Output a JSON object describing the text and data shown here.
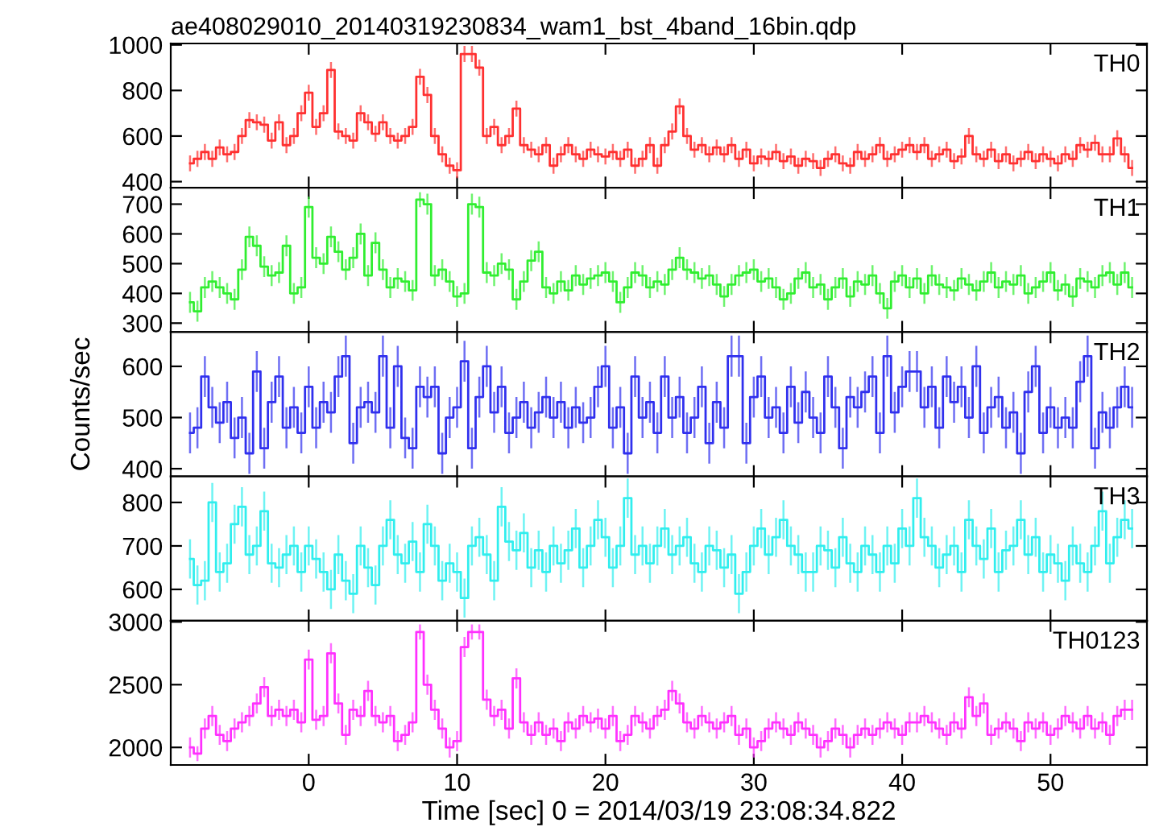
{
  "chart_data": [
    {
      "type": "step",
      "title": "ae408029010_20140319230834_wam1_bst_4band_16bin.qdp",
      "xlim": [
        -9.3,
        56.5
      ],
      "xticks": [
        0,
        10,
        20,
        30,
        40,
        50
      ],
      "ylim": [
        373,
        1006
      ],
      "yticks": [
        400,
        600,
        800,
        1000
      ],
      "tick_labels": "y",
      "grid": false,
      "legend": false,
      "x": [
        -8.0,
        -7.5,
        -7.0,
        -6.5,
        -6.0,
        -5.5,
        -5.0,
        -4.5,
        -4.0,
        -3.5,
        -3.0,
        -2.5,
        -2.0,
        -1.5,
        -1.0,
        -0.5,
        0.0,
        0.5,
        1.0,
        1.5,
        2.0,
        2.5,
        3.0,
        3.5,
        4.0,
        4.5,
        5.0,
        5.5,
        6.0,
        6.5,
        7.0,
        7.5,
        8.0,
        8.5,
        9.0,
        9.5,
        10.0,
        10.5,
        11.0,
        11.5,
        12.0,
        12.5,
        13.0,
        13.5,
        14.0,
        14.5,
        15.0,
        15.5,
        16.0,
        16.5,
        17.0,
        17.5,
        18.0,
        18.5,
        19.0,
        19.5,
        20.0,
        20.5,
        21.0,
        21.5,
        22.0,
        22.5,
        23.0,
        23.5,
        24.0,
        24.5,
        25.0,
        25.5,
        26.0,
        26.5,
        27.0,
        27.5,
        28.0,
        28.5,
        29.0,
        29.5,
        30.0,
        30.5,
        31.0,
        31.5,
        32.0,
        32.5,
        33.0,
        33.5,
        34.0,
        34.5,
        35.0,
        35.5,
        36.0,
        36.5,
        37.0,
        37.5,
        38.0,
        38.5,
        39.0,
        39.5,
        40.0,
        40.5,
        41.0,
        41.5,
        42.0,
        42.5,
        43.0,
        43.5,
        44.0,
        44.5,
        45.0,
        45.5,
        46.0,
        46.5,
        47.0,
        47.5,
        48.0,
        48.5,
        49.0,
        49.5,
        50.0,
        50.5,
        51.0,
        51.5,
        52.0,
        52.5,
        53.0,
        53.5,
        54.0,
        54.5,
        55.0,
        55.5
      ],
      "series": [
        {
          "name": "TH0",
          "color": "#ff3030",
          "values": [
            480,
            500,
            530,
            500,
            550,
            520,
            530,
            600,
            670,
            660,
            650,
            580,
            660,
            560,
            600,
            700,
            790,
            640,
            700,
            890,
            620,
            600,
            580,
            700,
            660,
            610,
            660,
            600,
            580,
            600,
            640,
            860,
            780,
            600,
            520,
            470,
            450,
            960,
            960,
            900,
            600,
            640,
            560,
            600,
            720,
            560,
            540,
            520,
            560,
            470,
            520,
            560,
            520,
            500,
            540,
            520,
            510,
            530,
            500,
            540,
            470,
            500,
            560,
            470,
            560,
            620,
            730,
            600,
            540,
            560,
            520,
            550,
            520,
            560,
            500,
            540,
            480,
            510,
            500,
            530,
            490,
            510,
            470,
            500,
            490,
            460,
            500,
            520,
            480,
            470,
            530,
            500,
            520,
            560,
            500,
            520,
            540,
            560,
            530,
            560,
            500,
            520,
            540,
            490,
            510,
            600,
            520,
            500,
            540,
            490,
            520,
            480,
            500,
            530,
            490,
            520,
            500,
            480,
            520,
            500,
            560,
            540,
            570,
            520,
            520,
            590,
            520,
            460
          ],
          "errors": [
            35,
            35,
            35,
            35,
            35,
            35,
            35,
            35,
            35,
            35,
            35,
            35,
            35,
            35,
            35,
            35,
            35,
            35,
            35,
            35,
            35,
            35,
            35,
            35,
            35,
            35,
            35,
            35,
            35,
            35,
            35,
            35,
            35,
            35,
            35,
            35,
            35,
            35,
            35,
            35,
            35,
            35,
            35,
            35,
            35,
            35,
            35,
            35,
            35,
            35,
            35,
            35,
            35,
            35,
            35,
            35,
            35,
            35,
            35,
            35,
            35,
            35,
            35,
            35,
            35,
            35,
            35,
            35,
            35,
            35,
            35,
            35,
            35,
            35,
            35,
            35,
            35,
            35,
            35,
            35,
            35,
            35,
            35,
            35,
            35,
            35,
            35,
            35,
            35,
            35,
            35,
            35,
            35,
            35,
            35,
            35,
            35,
            35,
            35,
            35,
            35,
            35,
            35,
            35,
            35,
            35,
            35,
            35,
            35,
            35,
            35,
            35,
            35,
            35,
            35,
            35,
            35,
            35,
            35,
            35,
            35,
            35,
            35,
            35,
            35,
            35,
            35,
            35
          ]
        }
      ]
    },
    {
      "type": "step",
      "xlim": [
        -9.3,
        56.5
      ],
      "xticks": [
        0,
        10,
        20,
        30,
        40,
        50
      ],
      "ylim": [
        270,
        755
      ],
      "yticks": [
        300,
        400,
        500,
        600,
        700
      ],
      "tick_labels": "y",
      "grid": false,
      "legend": false,
      "x": [
        -8.0,
        -7.5,
        -7.0,
        -6.5,
        -6.0,
        -5.5,
        -5.0,
        -4.5,
        -4.0,
        -3.5,
        -3.0,
        -2.5,
        -2.0,
        -1.5,
        -1.0,
        -0.5,
        0.0,
        0.5,
        1.0,
        1.5,
        2.0,
        2.5,
        3.0,
        3.5,
        4.0,
        4.5,
        5.0,
        5.5,
        6.0,
        6.5,
        7.0,
        7.5,
        8.0,
        8.5,
        9.0,
        9.5,
        10.0,
        10.5,
        11.0,
        11.5,
        12.0,
        12.5,
        13.0,
        13.5,
        14.0,
        14.5,
        15.0,
        15.5,
        16.0,
        16.5,
        17.0,
        17.5,
        18.0,
        18.5,
        19.0,
        19.5,
        20.0,
        20.5,
        21.0,
        21.5,
        22.0,
        22.5,
        23.0,
        23.5,
        24.0,
        24.5,
        25.0,
        25.5,
        26.0,
        26.5,
        27.0,
        27.5,
        28.0,
        28.5,
        29.0,
        29.5,
        30.0,
        30.5,
        31.0,
        31.5,
        32.0,
        32.5,
        33.0,
        33.5,
        34.0,
        34.5,
        35.0,
        35.5,
        36.0,
        36.5,
        37.0,
        37.5,
        38.0,
        38.5,
        39.0,
        39.5,
        40.0,
        40.5,
        41.0,
        41.5,
        42.0,
        42.5,
        43.0,
        43.5,
        44.0,
        44.5,
        45.0,
        45.5,
        46.0,
        46.5,
        47.0,
        47.5,
        48.0,
        48.5,
        49.0,
        49.5,
        50.0,
        50.5,
        51.0,
        51.5,
        52.0,
        52.5,
        53.0,
        53.5,
        54.0,
        54.5,
        55.0,
        55.5
      ],
      "series": [
        {
          "name": "TH1",
          "color": "#30ee30",
          "values": [
            370,
            340,
            420,
            440,
            420,
            400,
            380,
            480,
            590,
            560,
            490,
            460,
            470,
            560,
            400,
            420,
            690,
            520,
            500,
            590,
            540,
            480,
            520,
            600,
            460,
            570,
            480,
            420,
            450,
            440,
            410,
            715,
            700,
            460,
            480,
            440,
            390,
            400,
            700,
            690,
            470,
            460,
            500,
            480,
            380,
            440,
            510,
            540,
            420,
            400,
            440,
            410,
            460,
            430,
            450,
            460,
            470,
            440,
            370,
            420,
            470,
            460,
            420,
            440,
            430,
            480,
            520,
            480,
            470,
            450,
            460,
            430,
            390,
            430,
            460,
            470,
            480,
            440,
            450,
            420,
            380,
            400,
            450,
            470,
            420,
            430,
            380,
            420,
            450,
            390,
            440,
            430,
            460,
            400,
            350,
            440,
            460,
            420,
            450,
            400,
            460,
            430,
            420,
            410,
            450,
            430,
            410,
            440,
            470,
            420,
            440,
            430,
            460,
            400,
            420,
            440,
            470,
            410,
            430,
            390,
            450,
            440,
            420,
            460,
            470,
            430,
            470,
            420
          ],
          "errors": [
            35,
            35,
            35,
            35,
            35,
            35,
            35,
            35,
            35,
            35,
            35,
            35,
            35,
            35,
            35,
            35,
            35,
            35,
            35,
            35,
            35,
            35,
            35,
            35,
            35,
            35,
            35,
            35,
            35,
            35,
            35,
            25,
            35,
            35,
            35,
            35,
            35,
            35,
            35,
            35,
            35,
            35,
            35,
            35,
            35,
            35,
            35,
            35,
            35,
            35,
            35,
            35,
            35,
            35,
            35,
            35,
            35,
            35,
            35,
            35,
            35,
            35,
            35,
            35,
            35,
            35,
            35,
            35,
            35,
            35,
            35,
            35,
            35,
            35,
            35,
            35,
            35,
            35,
            35,
            35,
            35,
            35,
            35,
            35,
            35,
            35,
            35,
            35,
            35,
            35,
            35,
            35,
            35,
            35,
            35,
            35,
            35,
            35,
            35,
            35,
            35,
            35,
            35,
            35,
            35,
            35,
            35,
            35,
            35,
            35,
            35,
            35,
            35,
            35,
            35,
            35,
            35,
            35,
            35,
            35,
            35,
            35,
            35,
            35,
            35,
            35,
            35,
            35
          ]
        }
      ]
    },
    {
      "type": "step",
      "ylabel": "Counts/sec",
      "xlim": [
        -9.3,
        56.5
      ],
      "xticks": [
        0,
        10,
        20,
        30,
        40,
        50
      ],
      "ylim": [
        385,
        667
      ],
      "yticks": [
        400,
        500,
        600
      ],
      "tick_labels": "y",
      "grid": false,
      "legend": false,
      "x": [
        -8.0,
        -7.5,
        -7.0,
        -6.5,
        -6.0,
        -5.5,
        -5.0,
        -4.5,
        -4.0,
        -3.5,
        -3.0,
        -2.5,
        -2.0,
        -1.5,
        -1.0,
        -0.5,
        0.0,
        0.5,
        1.0,
        1.5,
        2.0,
        2.5,
        3.0,
        3.5,
        4.0,
        4.5,
        5.0,
        5.5,
        6.0,
        6.5,
        7.0,
        7.5,
        8.0,
        8.5,
        9.0,
        9.5,
        10.0,
        10.5,
        11.0,
        11.5,
        12.0,
        12.5,
        13.0,
        13.5,
        14.0,
        14.5,
        15.0,
        15.5,
        16.0,
        16.5,
        17.0,
        17.5,
        18.0,
        18.5,
        19.0,
        19.5,
        20.0,
        20.5,
        21.0,
        21.5,
        22.0,
        22.5,
        23.0,
        23.5,
        24.0,
        24.5,
        25.0,
        25.5,
        26.0,
        26.5,
        27.0,
        27.5,
        28.0,
        28.5,
        29.0,
        29.5,
        30.0,
        30.5,
        31.0,
        31.5,
        32.0,
        32.5,
        33.0,
        33.5,
        34.0,
        34.5,
        35.0,
        35.5,
        36.0,
        36.5,
        37.0,
        37.5,
        38.0,
        38.5,
        39.0,
        39.5,
        40.0,
        40.5,
        41.0,
        41.5,
        42.0,
        42.5,
        43.0,
        43.5,
        44.0,
        44.5,
        45.0,
        45.5,
        46.0,
        46.5,
        47.0,
        47.5,
        48.0,
        48.5,
        49.0,
        49.5,
        50.0,
        50.5,
        51.0,
        51.5,
        52.0,
        52.5,
        53.0,
        53.5,
        54.0,
        54.5,
        55.0,
        55.5
      ],
      "series": [
        {
          "name": "TH2",
          "color": "#3030ee",
          "values": [
            470,
            480,
            580,
            520,
            490,
            530,
            460,
            500,
            430,
            590,
            440,
            530,
            580,
            480,
            520,
            470,
            560,
            480,
            530,
            510,
            580,
            620,
            450,
            520,
            530,
            510,
            620,
            480,
            600,
            460,
            440,
            560,
            540,
            560,
            430,
            500,
            520,
            610,
            440,
            540,
            600,
            510,
            560,
            470,
            500,
            530,
            480,
            510,
            540,
            500,
            530,
            480,
            520,
            490,
            500,
            560,
            600,
            480,
            520,
            430,
            580,
            500,
            530,
            470,
            580,
            500,
            540,
            470,
            500,
            560,
            450,
            530,
            480,
            620,
            620,
            450,
            540,
            580,
            500,
            520,
            470,
            560,
            490,
            550,
            500,
            470,
            580,
            520,
            440,
            540,
            520,
            550,
            580,
            470,
            620,
            510,
            560,
            590,
            590,
            520,
            560,
            480,
            580,
            530,
            560,
            500,
            600,
            470,
            520,
            540,
            480,
            510,
            430,
            550,
            600,
            470,
            520,
            480,
            500,
            480,
            570,
            620,
            440,
            510,
            480,
            520,
            560,
            520
          ],
          "errors": [
            40,
            40,
            40,
            40,
            40,
            40,
            40,
            40,
            40,
            40,
            40,
            40,
            40,
            40,
            40,
            40,
            40,
            40,
            40,
            40,
            40,
            40,
            40,
            40,
            40,
            40,
            40,
            40,
            40,
            40,
            40,
            40,
            40,
            40,
            40,
            40,
            40,
            40,
            40,
            40,
            40,
            40,
            40,
            40,
            40,
            40,
            40,
            40,
            40,
            40,
            40,
            40,
            40,
            40,
            40,
            40,
            40,
            40,
            40,
            40,
            40,
            40,
            40,
            40,
            40,
            40,
            40,
            40,
            40,
            40,
            40,
            40,
            40,
            40,
            40,
            40,
            40,
            40,
            40,
            40,
            40,
            40,
            40,
            40,
            40,
            40,
            40,
            40,
            40,
            40,
            40,
            40,
            40,
            40,
            40,
            40,
            40,
            40,
            40,
            40,
            40,
            40,
            40,
            40,
            40,
            40,
            40,
            40,
            40,
            40,
            40,
            40,
            40,
            40,
            40,
            40,
            40,
            40,
            40,
            40,
            40,
            40,
            40,
            40,
            40,
            40,
            40,
            40
          ]
        }
      ]
    },
    {
      "type": "step",
      "xlim": [
        -9.3,
        56.5
      ],
      "xticks": [
        0,
        10,
        20,
        30,
        40,
        50
      ],
      "ylim": [
        528,
        860
      ],
      "yticks": [
        600,
        700,
        800
      ],
      "tick_labels": "y",
      "grid": false,
      "legend": false,
      "x": [
        -8.0,
        -7.5,
        -7.0,
        -6.5,
        -6.0,
        -5.5,
        -5.0,
        -4.5,
        -4.0,
        -3.5,
        -3.0,
        -2.5,
        -2.0,
        -1.5,
        -1.0,
        -0.5,
        0.0,
        0.5,
        1.0,
        1.5,
        2.0,
        2.5,
        3.0,
        3.5,
        4.0,
        4.5,
        5.0,
        5.5,
        6.0,
        6.5,
        7.0,
        7.5,
        8.0,
        8.5,
        9.0,
        9.5,
        10.0,
        10.5,
        11.0,
        11.5,
        12.0,
        12.5,
        13.0,
        13.5,
        14.0,
        14.5,
        15.0,
        15.5,
        16.0,
        16.5,
        17.0,
        17.5,
        18.0,
        18.5,
        19.0,
        19.5,
        20.0,
        20.5,
        21.0,
        21.5,
        22.0,
        22.5,
        23.0,
        23.5,
        24.0,
        24.5,
        25.0,
        25.5,
        26.0,
        26.5,
        27.0,
        27.5,
        28.0,
        28.5,
        29.0,
        29.5,
        30.0,
        30.5,
        31.0,
        31.5,
        32.0,
        32.5,
        33.0,
        33.5,
        34.0,
        34.5,
        35.0,
        35.5,
        36.0,
        36.5,
        37.0,
        37.5,
        38.0,
        38.5,
        39.0,
        39.5,
        40.0,
        40.5,
        41.0,
        41.5,
        42.0,
        42.5,
        43.0,
        43.5,
        44.0,
        44.5,
        45.0,
        45.5,
        46.0,
        46.5,
        47.0,
        47.5,
        48.0,
        48.5,
        49.0,
        49.5,
        50.0,
        50.5,
        51.0,
        51.5,
        52.0,
        52.5,
        53.0,
        53.5,
        54.0,
        54.5,
        55.0,
        55.5
      ],
      "series": [
        {
          "name": "TH3",
          "color": "#30eeee",
          "values": [
            670,
            610,
            620,
            800,
            640,
            660,
            750,
            790,
            680,
            700,
            780,
            660,
            650,
            680,
            700,
            640,
            700,
            670,
            640,
            600,
            680,
            620,
            590,
            700,
            650,
            610,
            700,
            760,
            680,
            660,
            710,
            640,
            750,
            700,
            620,
            660,
            640,
            580,
            700,
            720,
            680,
            620,
            790,
            710,
            690,
            730,
            650,
            690,
            640,
            700,
            660,
            690,
            740,
            650,
            700,
            760,
            720,
            650,
            700,
            810,
            680,
            700,
            660,
            700,
            740,
            680,
            700,
            720,
            660,
            640,
            700,
            690,
            650,
            680,
            590,
            640,
            700,
            740,
            680,
            720,
            760,
            700,
            680,
            640,
            640,
            700,
            690,
            650,
            720,
            660,
            640,
            700,
            680,
            640,
            700,
            660,
            740,
            700,
            810,
            720,
            700,
            650,
            680,
            700,
            640,
            760,
            700,
            670,
            740,
            640,
            690,
            700,
            760,
            680,
            720,
            640,
            680,
            660,
            620,
            700,
            660,
            640,
            700,
            780,
            660,
            720,
            760,
            740
          ],
          "errors": [
            45,
            45,
            45,
            45,
            45,
            45,
            45,
            45,
            45,
            45,
            45,
            45,
            45,
            45,
            45,
            45,
            45,
            45,
            45,
            45,
            45,
            45,
            45,
            45,
            45,
            45,
            45,
            45,
            45,
            45,
            45,
            45,
            45,
            45,
            45,
            45,
            45,
            45,
            45,
            45,
            45,
            45,
            45,
            45,
            45,
            45,
            45,
            45,
            45,
            45,
            45,
            45,
            45,
            45,
            45,
            45,
            45,
            45,
            45,
            45,
            45,
            45,
            45,
            45,
            45,
            45,
            45,
            45,
            45,
            45,
            45,
            45,
            45,
            45,
            45,
            45,
            45,
            45,
            45,
            45,
            45,
            45,
            45,
            45,
            45,
            45,
            45,
            45,
            45,
            45,
            45,
            45,
            45,
            45,
            45,
            45,
            45,
            45,
            45,
            45,
            45,
            45,
            45,
            45,
            45,
            45,
            45,
            45,
            45,
            45,
            45,
            45,
            45,
            45,
            45,
            45,
            45,
            45,
            45,
            45,
            45,
            45,
            45,
            45,
            45,
            45,
            45,
            45
          ]
        }
      ]
    },
    {
      "type": "step",
      "xlabel": "Time [sec] 0 = 2014/03/19 23:08:34.822",
      "xlim": [
        -9.3,
        56.5
      ],
      "xticks": [
        0,
        10,
        20,
        30,
        40,
        50
      ],
      "ylim": [
        1860,
        3010
      ],
      "yticks": [
        2000,
        2500,
        3000
      ],
      "grid": false,
      "legend": false,
      "x": [
        -8.0,
        -7.5,
        -7.0,
        -6.5,
        -6.0,
        -5.5,
        -5.0,
        -4.5,
        -4.0,
        -3.5,
        -3.0,
        -2.5,
        -2.0,
        -1.5,
        -1.0,
        -0.5,
        0.0,
        0.5,
        1.0,
        1.5,
        2.0,
        2.5,
        3.0,
        3.5,
        4.0,
        4.5,
        5.0,
        5.5,
        6.0,
        6.5,
        7.0,
        7.5,
        8.0,
        8.5,
        9.0,
        9.5,
        10.0,
        10.5,
        11.0,
        11.5,
        12.0,
        12.5,
        13.0,
        13.5,
        14.0,
        14.5,
        15.0,
        15.5,
        16.0,
        16.5,
        17.0,
        17.5,
        18.0,
        18.5,
        19.0,
        19.5,
        20.0,
        20.5,
        21.0,
        21.5,
        22.0,
        22.5,
        23.0,
        23.5,
        24.0,
        24.5,
        25.0,
        25.5,
        26.0,
        26.5,
        27.0,
        27.5,
        28.0,
        28.5,
        29.0,
        29.5,
        30.0,
        30.5,
        31.0,
        31.5,
        32.0,
        32.5,
        33.0,
        33.5,
        34.0,
        34.5,
        35.0,
        35.5,
        36.0,
        36.5,
        37.0,
        37.5,
        38.0,
        38.5,
        39.0,
        39.5,
        40.0,
        40.5,
        41.0,
        41.5,
        42.0,
        42.5,
        43.0,
        43.5,
        44.0,
        44.5,
        45.0,
        45.5,
        46.0,
        46.5,
        47.0,
        47.5,
        48.0,
        48.5,
        49.0,
        49.5,
        50.0,
        50.5,
        51.0,
        51.5,
        52.0,
        52.5,
        53.0,
        53.5,
        54.0,
        54.5,
        55.0,
        55.5
      ],
      "series": [
        {
          "name": "TH0123",
          "color": "#ff30ff",
          "values": [
            2000,
            1950,
            2150,
            2250,
            2100,
            2050,
            2150,
            2200,
            2250,
            2350,
            2480,
            2250,
            2300,
            2250,
            2300,
            2200,
            2700,
            2220,
            2250,
            2750,
            2350,
            2100,
            2300,
            2250,
            2450,
            2250,
            2200,
            2250,
            2050,
            2100,
            2200,
            2920,
            2500,
            2300,
            2150,
            2000,
            2050,
            2800,
            2920,
            2920,
            2380,
            2250,
            2300,
            2150,
            2550,
            2200,
            2100,
            2200,
            2100,
            2150,
            2050,
            2200,
            2150,
            2250,
            2200,
            2230,
            2150,
            2250,
            2050,
            2100,
            2250,
            2200,
            2150,
            2250,
            2300,
            2450,
            2350,
            2200,
            2150,
            2250,
            2200,
            2150,
            2200,
            2250,
            2100,
            2150,
            2000,
            2050,
            2150,
            2200,
            2150,
            2100,
            2200,
            2150,
            2100,
            2000,
            2050,
            2150,
            2100,
            2000,
            2100,
            2150,
            2100,
            2150,
            2200,
            2150,
            2100,
            2200,
            2200,
            2250,
            2200,
            2150,
            2100,
            2200,
            2150,
            2400,
            2250,
            2350,
            2100,
            2150,
            2200,
            2150,
            2050,
            2200,
            2150,
            2200,
            2100,
            2150,
            2250,
            2200,
            2150,
            2250,
            2150,
            2200,
            2100,
            2250,
            2300,
            2300
          ],
          "errors": [
            80,
            60,
            80,
            80,
            80,
            80,
            80,
            80,
            80,
            80,
            80,
            80,
            80,
            80,
            80,
            80,
            80,
            80,
            80,
            80,
            80,
            80,
            80,
            80,
            80,
            80,
            80,
            80,
            80,
            80,
            80,
            60,
            80,
            80,
            80,
            80,
            80,
            80,
            60,
            60,
            80,
            80,
            80,
            80,
            80,
            80,
            80,
            80,
            80,
            80,
            80,
            80,
            80,
            80,
            80,
            80,
            80,
            80,
            80,
            80,
            80,
            80,
            80,
            80,
            80,
            80,
            80,
            80,
            80,
            80,
            80,
            80,
            80,
            80,
            80,
            80,
            80,
            80,
            80,
            80,
            80,
            80,
            80,
            80,
            80,
            80,
            80,
            80,
            80,
            80,
            80,
            80,
            80,
            80,
            80,
            80,
            80,
            80,
            80,
            80,
            80,
            80,
            80,
            80,
            80,
            80,
            80,
            80,
            80,
            80,
            80,
            80,
            80,
            80,
            80,
            80,
            80,
            80,
            80,
            80,
            80,
            80,
            80,
            80,
            80,
            80,
            80,
            80
          ]
        }
      ]
    }
  ]
}
